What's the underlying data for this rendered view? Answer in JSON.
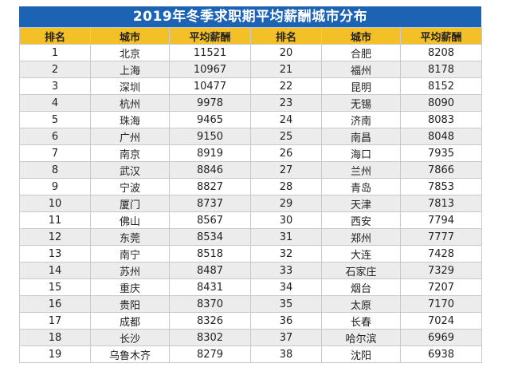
{
  "title": "2019年冬季求职期平均薪酬城市分布",
  "headers": [
    "排名",
    "城市",
    "平均薪酬",
    "排名",
    "城市",
    "平均薪酬"
  ],
  "colors": {
    "title_bg": "#1c63b4",
    "header_bg": "#f4c028",
    "row_alt_bg": "#ececec"
  },
  "rows": [
    {
      "left": {
        "rank": "1",
        "city": "北京",
        "salary": "11521"
      },
      "right": {
        "rank": "20",
        "city": "合肥",
        "salary": "8208"
      }
    },
    {
      "left": {
        "rank": "2",
        "city": "上海",
        "salary": "10967"
      },
      "right": {
        "rank": "21",
        "city": "福州",
        "salary": "8178"
      }
    },
    {
      "left": {
        "rank": "3",
        "city": "深圳",
        "salary": "10477"
      },
      "right": {
        "rank": "22",
        "city": "昆明",
        "salary": "8152"
      }
    },
    {
      "left": {
        "rank": "4",
        "city": "杭州",
        "salary": "9978"
      },
      "right": {
        "rank": "23",
        "city": "无锡",
        "salary": "8090"
      }
    },
    {
      "left": {
        "rank": "5",
        "city": "珠海",
        "salary": "9465"
      },
      "right": {
        "rank": "24",
        "city": "济南",
        "salary": "8083"
      }
    },
    {
      "left": {
        "rank": "6",
        "city": "广州",
        "salary": "9150"
      },
      "right": {
        "rank": "25",
        "city": "南昌",
        "salary": "8048"
      }
    },
    {
      "left": {
        "rank": "7",
        "city": "南京",
        "salary": "8919"
      },
      "right": {
        "rank": "26",
        "city": "海口",
        "salary": "7935"
      }
    },
    {
      "left": {
        "rank": "8",
        "city": "武汉",
        "salary": "8846"
      },
      "right": {
        "rank": "27",
        "city": "兰州",
        "salary": "7866"
      }
    },
    {
      "left": {
        "rank": "9",
        "city": "宁波",
        "salary": "8827"
      },
      "right": {
        "rank": "28",
        "city": "青岛",
        "salary": "7853"
      }
    },
    {
      "left": {
        "rank": "10",
        "city": "厦门",
        "salary": "8737"
      },
      "right": {
        "rank": "29",
        "city": "天津",
        "salary": "7813"
      }
    },
    {
      "left": {
        "rank": "11",
        "city": "佛山",
        "salary": "8567"
      },
      "right": {
        "rank": "30",
        "city": "西安",
        "salary": "7794"
      }
    },
    {
      "left": {
        "rank": "12",
        "city": "东莞",
        "salary": "8534"
      },
      "right": {
        "rank": "31",
        "city": "郑州",
        "salary": "7777"
      }
    },
    {
      "left": {
        "rank": "13",
        "city": "南宁",
        "salary": "8518"
      },
      "right": {
        "rank": "32",
        "city": "大连",
        "salary": "7428"
      }
    },
    {
      "left": {
        "rank": "14",
        "city": "苏州",
        "salary": "8487"
      },
      "right": {
        "rank": "33",
        "city": "石家庄",
        "salary": "7329"
      }
    },
    {
      "left": {
        "rank": "15",
        "city": "重庆",
        "salary": "8431"
      },
      "right": {
        "rank": "34",
        "city": "烟台",
        "salary": "7207"
      }
    },
    {
      "left": {
        "rank": "16",
        "city": "贵阳",
        "salary": "8370"
      },
      "right": {
        "rank": "35",
        "city": "太原",
        "salary": "7170"
      }
    },
    {
      "left": {
        "rank": "17",
        "city": "成都",
        "salary": "8326"
      },
      "right": {
        "rank": "36",
        "city": "长春",
        "salary": "7024"
      }
    },
    {
      "left": {
        "rank": "18",
        "city": "长沙",
        "salary": "8302"
      },
      "right": {
        "rank": "37",
        "city": "哈尔滨",
        "salary": "6969"
      }
    },
    {
      "left": {
        "rank": "19",
        "city": "乌鲁木齐",
        "salary": "8279"
      },
      "right": {
        "rank": "38",
        "city": "沈阳",
        "salary": "6938"
      }
    }
  ]
}
